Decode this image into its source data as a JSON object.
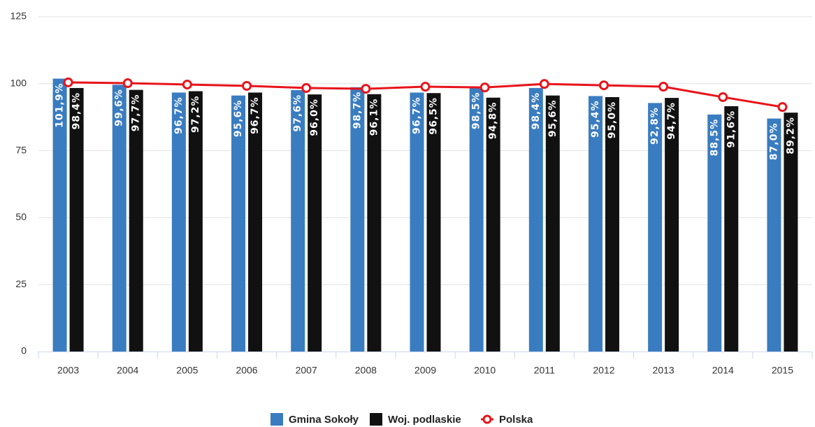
{
  "chart_data": {
    "type": "bar",
    "categories": [
      "2003",
      "2004",
      "2005",
      "2006",
      "2007",
      "2008",
      "2009",
      "2010",
      "2011",
      "2012",
      "2013",
      "2014",
      "2015"
    ],
    "series": [
      {
        "name": "Gmina Sokoły",
        "color": "#3a7cc0",
        "type": "bar",
        "values": [
          101.9,
          99.6,
          96.7,
          95.6,
          97.6,
          98.7,
          96.7,
          98.5,
          98.4,
          95.4,
          92.8,
          88.5,
          87.0
        ],
        "value_labels": [
          "101,9%",
          "99,6%",
          "96,7%",
          "95,6%",
          "97,6%",
          "98,7%",
          "96,7%",
          "98,5%",
          "98,4%",
          "95,4%",
          "92,8%",
          "88,5%",
          "87,0%"
        ]
      },
      {
        "name": "Woj. podlaskie",
        "color": "#111111",
        "type": "bar",
        "values": [
          98.4,
          97.7,
          97.2,
          96.7,
          96.0,
          96.1,
          96.5,
          94.8,
          95.6,
          95.0,
          94.7,
          91.6,
          89.2
        ],
        "value_labels": [
          "98,4%",
          "97,7%",
          "97,2%",
          "96,7%",
          "96,0%",
          "96,1%",
          "96,5%",
          "94,8%",
          "95,6%",
          "95,0%",
          "94,7%",
          "91,6%",
          "89,2%"
        ]
      },
      {
        "name": "Polska",
        "color": "#e8141b",
        "type": "line",
        "values": [
          100.5,
          100.2,
          99.7,
          99.2,
          98.4,
          98.1,
          98.9,
          98.6,
          99.9,
          99.4,
          98.9,
          95.0,
          91.3
        ]
      }
    ],
    "ylim": [
      0,
      125
    ],
    "yticks": [
      0,
      25,
      50,
      75,
      100,
      125
    ],
    "grid": true
  }
}
